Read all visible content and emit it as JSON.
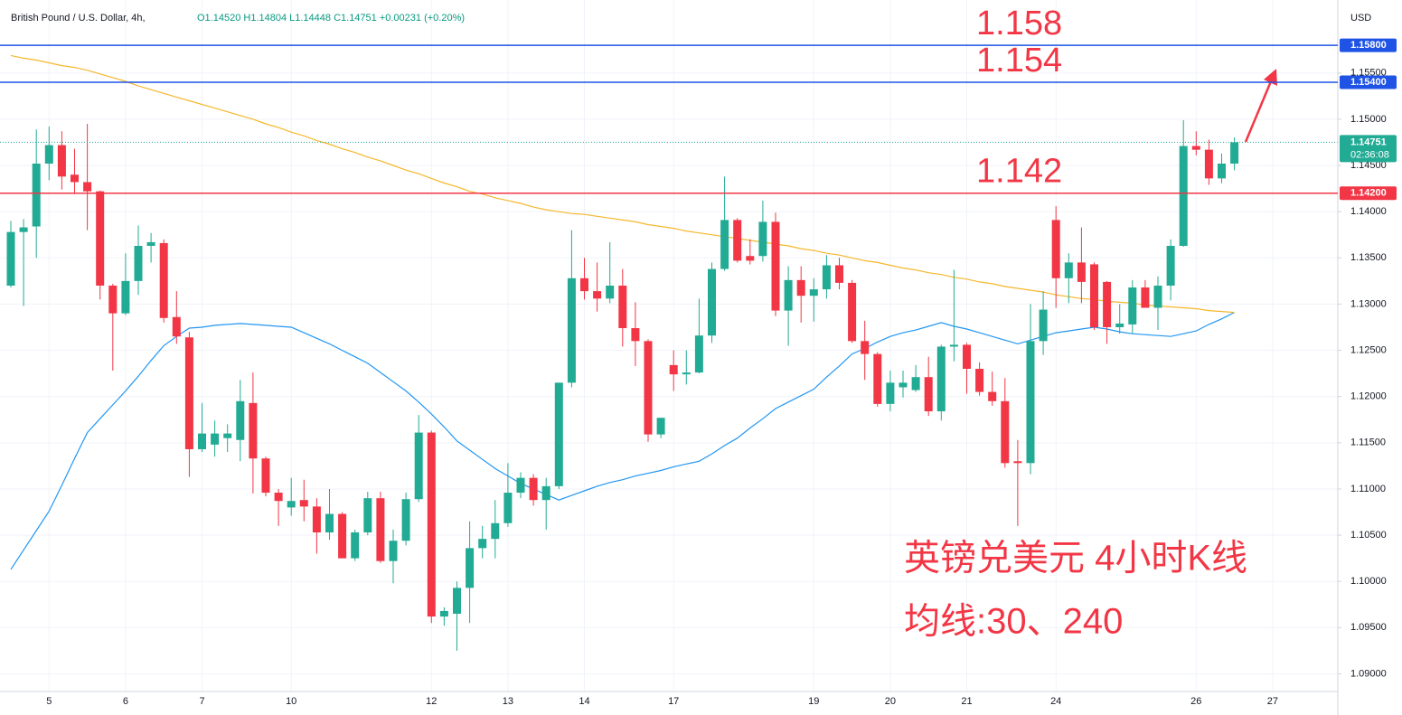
{
  "chart_data": {
    "type": "candlestick",
    "title": "British Pound / U.S. Dollar, 4h,",
    "subtitle": "O1.14520 H1.14804 L1.14448 C1.14751 +0.00231 (+0.20%)",
    "y_axis_label": "USD",
    "up_color": "#22ab94",
    "down_color": "#f23645",
    "grid": true,
    "ylim": [
      1.0876,
      1.1629
    ],
    "yticks": [
      {
        "value": 1.09,
        "label": "1.09000"
      },
      {
        "value": 1.095,
        "label": "1.09500"
      },
      {
        "value": 1.1,
        "label": "1.10000"
      },
      {
        "value": 1.105,
        "label": "1.10500"
      },
      {
        "value": 1.11,
        "label": "1.11000"
      },
      {
        "value": 1.115,
        "label": "1.11500"
      },
      {
        "value": 1.12,
        "label": "1.12000"
      },
      {
        "value": 1.125,
        "label": "1.12500"
      },
      {
        "value": 1.13,
        "label": "1.13000"
      },
      {
        "value": 1.135,
        "label": "1.13500"
      },
      {
        "value": 1.14,
        "label": "1.14000"
      },
      {
        "value": 1.145,
        "label": "1.14500"
      },
      {
        "value": 1.15,
        "label": "1.15000"
      },
      {
        "value": 1.155,
        "label": "1.15500"
      }
    ],
    "categories": [
      null,
      null,
      null,
      "5",
      null,
      null,
      null,
      null,
      null,
      "6",
      null,
      null,
      null,
      null,
      null,
      "7",
      null,
      null,
      null,
      null,
      null,
      null,
      "10",
      null,
      null,
      null,
      null,
      null,
      null,
      null,
      null,
      null,
      null,
      "12",
      null,
      null,
      null,
      null,
      null,
      "13",
      null,
      null,
      null,
      null,
      null,
      "14",
      null,
      null,
      null,
      null,
      null,
      null,
      "17",
      null,
      null,
      null,
      null,
      null,
      null,
      null,
      null,
      null,
      null,
      "19",
      null,
      null,
      null,
      null,
      null,
      "20",
      null,
      null,
      null,
      null,
      null,
      "21",
      null,
      null,
      null,
      null,
      null,
      null,
      "24",
      null,
      null,
      null,
      null,
      null,
      null,
      null,
      null,
      null,
      null,
      "26",
      null,
      null,
      null,
      null,
      null,
      "27"
    ],
    "open": [
      1.132,
      1.1378,
      1.1384,
      1.1452,
      1.1472,
      1.144,
      1.1432,
      1.1422,
      1.132,
      1.129,
      1.1325,
      1.1363,
      1.1366,
      1.1286,
      1.1264,
      1.1143,
      1.1148,
      1.1155,
      1.1153,
      1.1193,
      1.1133,
      1.1096,
      1.108,
      1.1088,
      1.1081,
      1.1053,
      1.1073,
      1.1025,
      1.1053,
      1.109,
      1.1022,
      1.1044,
      1.1089,
      1.1161,
      1.0962,
      1.0965,
      1.0993,
      1.1036,
      1.1046,
      1.1063,
      1.1096,
      1.1112,
      1.1088,
      1.1103,
      1.1215,
      1.1328,
      1.1314,
      1.1306,
      1.132,
      1.1274,
      1.126,
      1.1159,
      1.1234,
      1.1224,
      1.1226,
      1.1266,
      1.1338,
      1.1391,
      1.1352,
      1.1352,
      1.1389,
      1.1293,
      1.1326,
      1.1309,
      1.1316,
      1.1342,
      1.1323,
      1.126,
      1.1246,
      1.1192,
      1.121,
      1.1207,
      1.1221,
      1.1184,
      1.1254,
      1.1256,
      1.123,
      1.1205,
      1.1195,
      1.113,
      1.1128,
      1.126,
      1.1391,
      1.1328,
      1.1345,
      1.1343,
      1.1324,
      1.1275,
      1.1278,
      1.1318,
      1.1296,
      1.132,
      1.1363,
      1.1471,
      1.1467,
      1.1436,
      1.1452,
      null,
      null,
      null
    ],
    "high": [
      1.139,
      1.1392,
      1.1489,
      1.1492,
      1.1487,
      1.1468,
      1.1495,
      1.1423,
      1.1322,
      1.1355,
      1.1385,
      1.1377,
      1.137,
      1.1314,
      1.127,
      1.1193,
      1.1174,
      1.117,
      1.1218,
      1.1226,
      1.1135,
      1.11,
      1.1112,
      1.111,
      1.109,
      1.11,
      1.1075,
      1.1056,
      1.1097,
      1.1097,
      1.1056,
      1.1096,
      1.118,
      1.1163,
      1.0972,
      1.1,
      1.1065,
      1.106,
      1.1088,
      1.1128,
      1.1118,
      1.1116,
      1.1112,
      1.1215,
      1.138,
      1.135,
      1.1345,
      1.1367,
      1.1338,
      1.1302,
      1.1262,
      1.1177,
      1.125,
      1.125,
      1.1306,
      1.1345,
      1.1438,
      1.1393,
      1.137,
      1.1412,
      1.1399,
      1.1341,
      1.1341,
      1.1328,
      1.1353,
      1.135,
      1.1326,
      1.1282,
      1.1248,
      1.1228,
      1.1228,
      1.1234,
      1.1243,
      1.1256,
      1.1337,
      1.1258,
      1.1237,
      1.1227,
      1.122,
      1.1153,
      1.13,
      1.1314,
      1.1406,
      1.1355,
      1.1383,
      1.1345,
      1.1325,
      1.13,
      1.1326,
      1.1326,
      1.133,
      1.137,
      1.1499,
      1.1487,
      1.1478,
      1.1463,
      1.14804,
      null,
      null,
      null
    ],
    "low": [
      1.1318,
      1.1298,
      1.135,
      1.1434,
      1.1424,
      1.1419,
      1.138,
      1.1305,
      1.1228,
      1.1288,
      1.131,
      1.1345,
      1.128,
      1.1257,
      1.1113,
      1.114,
      1.1135,
      1.114,
      1.113,
      1.1095,
      1.1092,
      1.106,
      1.1071,
      1.1065,
      1.103,
      1.1045,
      1.1025,
      1.1022,
      1.105,
      1.102,
      1.0998,
      1.1039,
      1.1086,
      1.0955,
      1.0952,
      1.0925,
      1.0955,
      1.1025,
      1.1025,
      1.1059,
      1.109,
      1.1082,
      1.1056,
      1.11,
      1.121,
      1.1305,
      1.1292,
      1.1301,
      1.1254,
      1.1233,
      1.1151,
      1.1155,
      1.1206,
      1.1213,
      1.1225,
      1.1258,
      1.1336,
      1.1345,
      1.1343,
      1.1346,
      1.1287,
      1.1255,
      1.128,
      1.1281,
      1.1306,
      1.1316,
      1.1258,
      1.1218,
      1.1189,
      1.1184,
      1.1199,
      1.1205,
      1.1179,
      1.1174,
      1.1238,
      1.1203,
      1.1201,
      1.119,
      1.1123,
      1.106,
      1.1116,
      1.1245,
      1.1296,
      1.1301,
      1.1301,
      1.1272,
      1.1257,
      1.1268,
      1.1268,
      1.1296,
      1.1272,
      1.1304,
      1.1362,
      1.1461,
      1.1429,
      1.1431,
      1.14448,
      null,
      null,
      null
    ],
    "close": [
      1.1378,
      1.1383,
      1.1452,
      1.1472,
      1.1438,
      1.1432,
      1.1422,
      1.132,
      1.129,
      1.1325,
      1.1363,
      1.1367,
      1.1285,
      1.1265,
      1.1143,
      1.116,
      1.116,
      1.116,
      1.1195,
      1.1133,
      1.1096,
      1.1087,
      1.1087,
      1.1081,
      1.1053,
      1.1073,
      1.1025,
      1.1053,
      1.109,
      1.1022,
      1.1044,
      1.1089,
      1.1161,
      1.0962,
      1.0968,
      1.0993,
      1.1036,
      1.1046,
      1.1063,
      1.1096,
      1.1112,
      1.1088,
      1.1103,
      1.1215,
      1.1328,
      1.1314,
      1.1306,
      1.132,
      1.1274,
      1.126,
      1.1159,
      1.1177,
      1.1224,
      1.1226,
      1.1266,
      1.1338,
      1.1391,
      1.1347,
      1.1347,
      1.1389,
      1.1293,
      1.1326,
      1.1309,
      1.1316,
      1.1342,
      1.1323,
      1.126,
      1.1246,
      1.1192,
      1.1215,
      1.1215,
      1.1221,
      1.1184,
      1.1254,
      1.1256,
      1.123,
      1.1205,
      1.1195,
      1.1128,
      1.1128,
      1.126,
      1.1294,
      1.1328,
      1.1345,
      1.1324,
      1.1275,
      1.1275,
      1.1279,
      1.1318,
      1.1296,
      1.132,
      1.1363,
      1.1471,
      1.1467,
      1.1436,
      1.1452,
      1.14751,
      null,
      null,
      null
    ],
    "overlays": [
      {
        "color": "#2196f3",
        "values": [
          1.1013,
          1.1034,
          1.1055,
          1.1076,
          1.1104,
          1.1133,
          1.1161,
          1.1176,
          1.1191,
          1.1206,
          1.1222,
          1.1239,
          1.1255,
          1.1265,
          1.1274,
          1.1275,
          1.1277,
          1.1278,
          1.1279,
          1.1278,
          1.1277,
          1.1276,
          1.1275,
          1.1269,
          1.1263,
          1.1257,
          1.125,
          1.1243,
          1.1236,
          1.1226,
          1.1216,
          1.1206,
          1.1194,
          1.1181,
          1.1167,
          1.1152,
          1.1142,
          1.1132,
          1.1122,
          1.1114,
          1.1106,
          1.11,
          1.1094,
          1.1088,
          1.1093,
          1.1098,
          1.1103,
          1.1107,
          1.111,
          1.1114,
          1.1117,
          1.112,
          1.1124,
          1.1127,
          1.113,
          1.1138,
          1.1147,
          1.1155,
          1.1166,
          1.1176,
          1.1187,
          1.1194,
          1.1201,
          1.1208,
          1.1221,
          1.1233,
          1.1246,
          1.1252,
          1.1259,
          1.1265,
          1.1269,
          1.1272,
          1.1276,
          1.128,
          1.1276,
          1.1273,
          1.1269,
          1.1265,
          1.1261,
          1.1257,
          1.1261,
          1.1265,
          1.1269,
          1.1271,
          1.1273,
          1.1275,
          1.1273,
          1.127,
          1.1268,
          1.1267,
          1.1266,
          1.1265,
          1.1268,
          1.1271,
          1.1278,
          1.1284,
          1.1291,
          null,
          null,
          null
        ]
      },
      {
        "color": "#f5b72c",
        "values": [
          1.1569,
          1.1566,
          1.1564,
          1.1561,
          1.1558,
          1.1556,
          1.1553,
          1.1549,
          1.1545,
          1.1541,
          1.1536,
          1.1532,
          1.1528,
          1.1524,
          1.152,
          1.1516,
          1.1512,
          1.1508,
          1.1504,
          1.15,
          1.1495,
          1.1491,
          1.1486,
          1.1482,
          1.1477,
          1.1473,
          1.1468,
          1.1464,
          1.1459,
          1.1455,
          1.145,
          1.1445,
          1.1441,
          1.1436,
          1.1431,
          1.1427,
          1.1422,
          1.1419,
          1.1415,
          1.1412,
          1.1409,
          1.1405,
          1.1402,
          1.14,
          1.1398,
          1.1397,
          1.1395,
          1.1393,
          1.1391,
          1.1389,
          1.1386,
          1.1384,
          1.1382,
          1.1379,
          1.1377,
          1.1375,
          1.1373,
          1.1371,
          1.1369,
          1.1367,
          1.1365,
          1.1363,
          1.136,
          1.1358,
          1.1355,
          1.1353,
          1.135,
          1.1347,
          1.1345,
          1.1342,
          1.1339,
          1.1337,
          1.1334,
          1.1332,
          1.1329,
          1.1327,
          1.1324,
          1.1322,
          1.1319,
          1.1317,
          1.1315,
          1.1313,
          1.131,
          1.1308,
          1.1306,
          1.1305,
          1.1303,
          1.1302,
          1.1301,
          1.1299,
          1.1298,
          1.1297,
          1.1296,
          1.1295,
          1.1293,
          1.1292,
          1.1291,
          null,
          null,
          null
        ]
      }
    ],
    "levels": [
      {
        "value": 1.158,
        "tag": "1.15800",
        "color": "#1e53e5"
      },
      {
        "value": 1.154,
        "tag": "1.15400",
        "color": "#1e53e5"
      },
      {
        "value": 1.142,
        "tag": "1.14200",
        "color": "#f23645"
      }
    ],
    "countdown": "02:36:08",
    "annotations": [
      "英镑兑美元 4小时K线",
      "均线:30、240"
    ]
  }
}
